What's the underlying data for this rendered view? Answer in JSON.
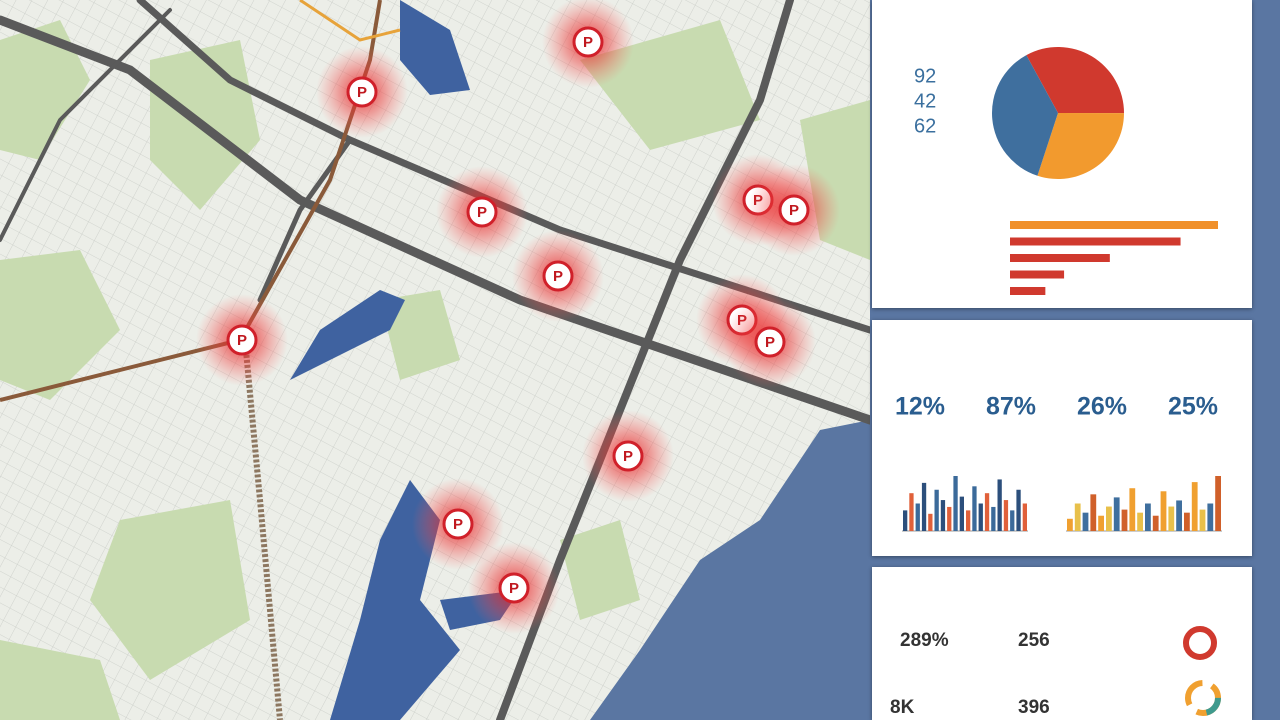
{
  "map": {
    "marker_label": "P"
  },
  "pie_panel": {
    "left_labels": [
      "92",
      "42",
      "62"
    ],
    "slices": [
      {
        "value": 33,
        "color": "#d0392e"
      },
      {
        "value": 30,
        "color": "#f29a2e"
      },
      {
        "value": 37,
        "color": "#3f6f9e"
      }
    ],
    "bars": [
      {
        "value": 100,
        "color": "#f0902a"
      },
      {
        "value": 82,
        "color": "#d0392e"
      },
      {
        "value": 48,
        "color": "#d0392e"
      },
      {
        "value": 26,
        "color": "#d0392e"
      },
      {
        "value": 17,
        "color": "#d0392e"
      }
    ]
  },
  "kpi_panel": {
    "kpis": [
      "12%",
      "87%",
      "26%",
      "25%"
    ],
    "chart_a": {
      "colors": [
        "#2c4f7c",
        "#e0603a",
        "#3b6a9a"
      ],
      "values": [
        30,
        55,
        40,
        70,
        25,
        60,
        45,
        35,
        80,
        50,
        30,
        65,
        40,
        55,
        35,
        75,
        45,
        30,
        60,
        40
      ]
    },
    "chart_b": {
      "colors": [
        "#f0a030",
        "#e8c04a",
        "#3f6f9e",
        "#d0602a"
      ],
      "values": [
        20,
        45,
        30,
        60,
        25,
        40,
        55,
        35,
        70,
        30,
        45,
        25,
        65,
        40,
        50,
        30,
        80,
        35,
        45,
        90
      ]
    }
  },
  "stats_panel": {
    "stats": [
      "289%",
      "256",
      "8K",
      "396"
    ]
  }
}
